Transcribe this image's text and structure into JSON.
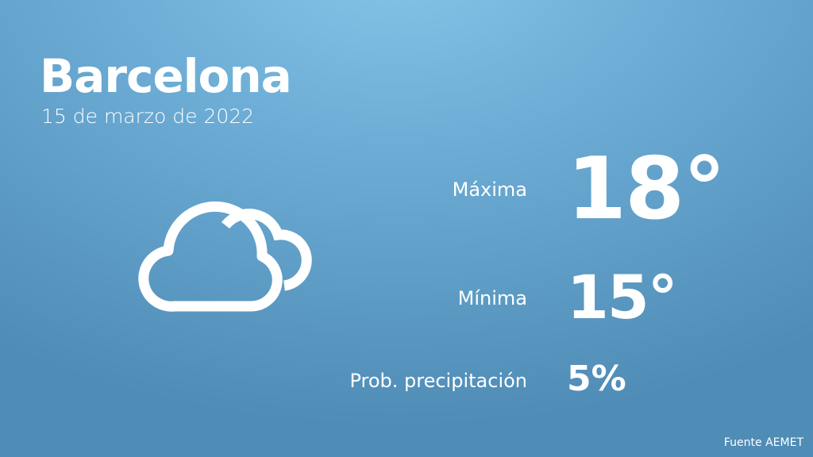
{
  "city": "Barcelona",
  "date": "15 de marzo de 2022",
  "weather_icon": "partly-cloudy-icon",
  "stats": [
    {
      "label": "Máxima",
      "value": "18°"
    },
    {
      "label": "Mínima",
      "value": "15°"
    },
    {
      "label": "Prob. precipitación",
      "value": "5%"
    }
  ],
  "source": "Fuente AEMET",
  "colors": {
    "background_top": "#86c6ea",
    "background_bottom": "#4f8cb6",
    "text": "#ffffff"
  }
}
